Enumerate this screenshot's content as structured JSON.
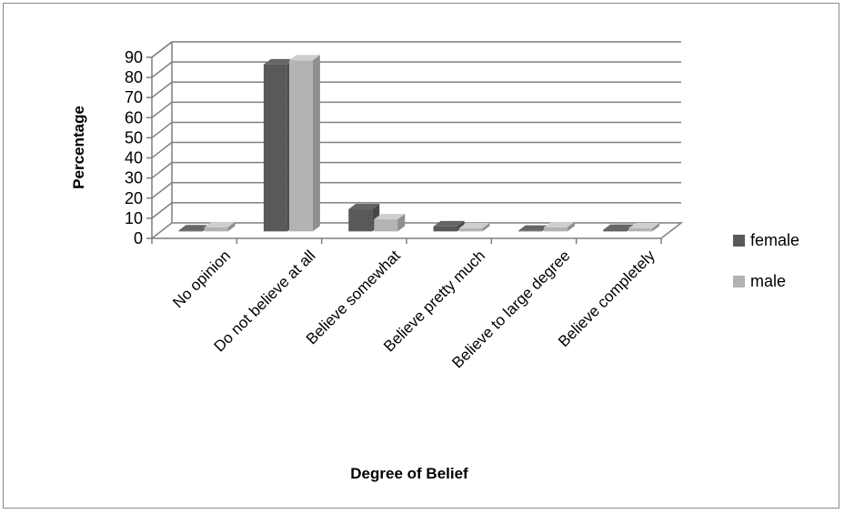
{
  "chart_data": {
    "type": "bar",
    "title": "",
    "xlabel": "Degree of Belief",
    "ylabel": "Percentage",
    "categories": [
      "No opinion",
      "Do not believe at all",
      "Believe somewhat",
      "Believe pretty much",
      "Believe to large degree",
      "Believe completely"
    ],
    "series": [
      {
        "name": "female",
        "values": [
          0.5,
          83,
          11,
          2.5,
          0.3,
          0.8
        ],
        "color": "#595959"
      },
      {
        "name": "male",
        "values": [
          2,
          85,
          6,
          1.5,
          2,
          1.5
        ],
        "color": "#b3b3b3"
      }
    ],
    "ylim": [
      0,
      90
    ],
    "yticks": [
      0,
      10,
      20,
      30,
      40,
      50,
      60,
      70,
      80,
      90
    ],
    "grid": true,
    "legend_position": "right",
    "style": "3d-clustered-column"
  }
}
